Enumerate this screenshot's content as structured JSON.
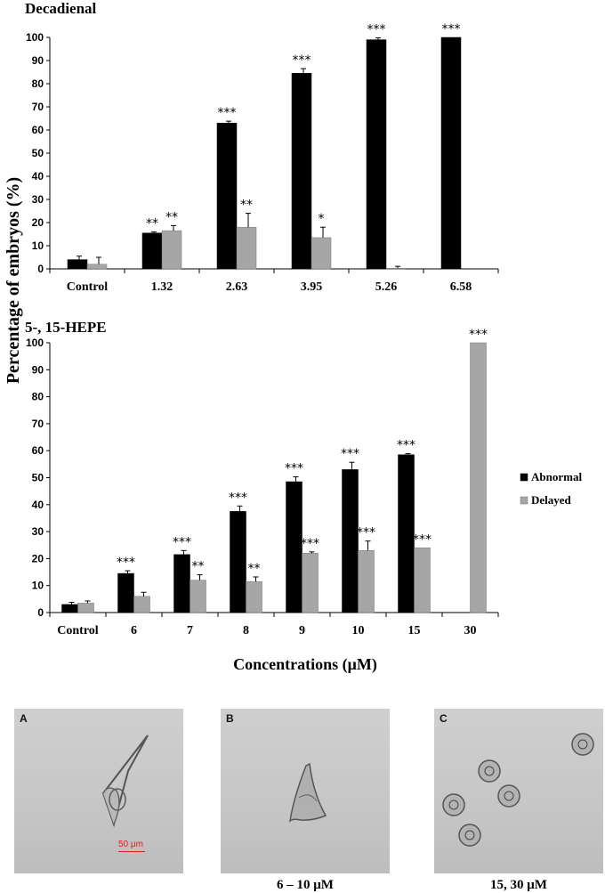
{
  "chart_data": [
    {
      "type": "bar",
      "title": "Decadienal",
      "categories": [
        "Control",
        "1.32",
        "2.63",
        "3.95",
        "5.26",
        "6.58"
      ],
      "ylim": [
        0,
        100
      ],
      "yticks": [
        0,
        10,
        20,
        30,
        40,
        50,
        60,
        70,
        80,
        90,
        100
      ],
      "series": [
        {
          "name": "Abnormal",
          "color": "#000000",
          "values": [
            4,
            15.5,
            63,
            84.5,
            99,
            100
          ],
          "errors": [
            1.5,
            0.5,
            0.8,
            2,
            0.8,
            0
          ],
          "significance": [
            "",
            "**",
            "***",
            "***",
            "***",
            "***"
          ]
        },
        {
          "name": "Delayed",
          "color": "#a6a6a6",
          "values": [
            2,
            16.5,
            18,
            13.5,
            0.3,
            0
          ],
          "errors": [
            3,
            2.2,
            6,
            4.5,
            0.8,
            0
          ],
          "significance": [
            "",
            "**",
            "**",
            "*",
            "",
            ""
          ]
        }
      ]
    },
    {
      "type": "bar",
      "title": "5-, 15-HEPE",
      "categories": [
        "Control",
        "6",
        "7",
        "8",
        "9",
        "10",
        "15",
        "30"
      ],
      "ylim": [
        0,
        100
      ],
      "yticks": [
        0,
        10,
        20,
        30,
        40,
        50,
        60,
        70,
        80,
        90,
        100
      ],
      "legend_position": "right",
      "series": [
        {
          "name": "Abnormal",
          "color": "#000000",
          "values": [
            3,
            14.5,
            21.5,
            37.5,
            48.5,
            53,
            58.5,
            0
          ],
          "errors": [
            0.8,
            1,
            1.5,
            2,
            1.8,
            2.7,
            0.4,
            0
          ],
          "significance": [
            "",
            "***",
            "***",
            "***",
            "***",
            "***",
            "***",
            ""
          ]
        },
        {
          "name": "Delayed",
          "color": "#a6a6a6",
          "values": [
            3.5,
            6,
            12,
            11.5,
            22,
            23,
            24,
            100
          ],
          "errors": [
            0.8,
            1.5,
            2,
            1.7,
            0.5,
            3.5,
            0,
            0
          ],
          "significance": [
            "",
            "",
            "**",
            "**",
            "***",
            "***",
            "***",
            "***"
          ]
        }
      ]
    }
  ],
  "ylabel": "Percentage of embryos (%)",
  "xlabel": "Concentrations (μM)",
  "micrographs": [
    {
      "letter": "A",
      "caption": "",
      "scale_label": "50 μm"
    },
    {
      "letter": "B",
      "caption": "6 – 10 μM"
    },
    {
      "letter": "C",
      "caption": "15, 30 μM"
    }
  ]
}
